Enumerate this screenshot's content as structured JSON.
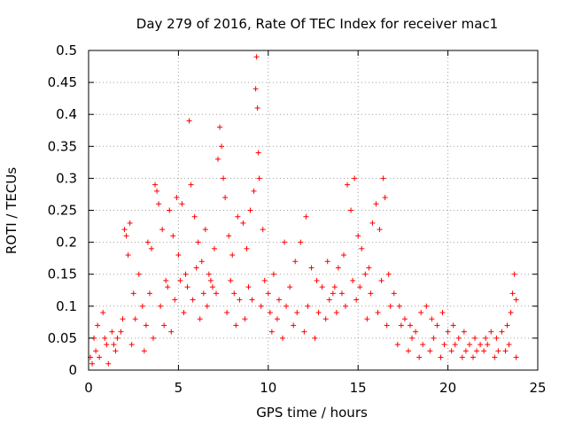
{
  "chart_data": {
    "type": "scatter",
    "title": "Day 279 of 2016, Rate Of TEC Index for receiver mac1",
    "xlabel": "GPS time / hours",
    "ylabel": "ROTI / TECUs",
    "xlim": [
      0,
      25
    ],
    "ylim": [
      0,
      0.5
    ],
    "x_ticks": [
      0,
      5,
      10,
      15,
      20,
      25
    ],
    "x_tick_labels": [
      "0",
      "5",
      "10",
      "15",
      "20",
      "25"
    ],
    "y_ticks": [
      0,
      0.05,
      0.1,
      0.15,
      0.2,
      0.25,
      0.3,
      0.35,
      0.4,
      0.45,
      0.5
    ],
    "y_tick_labels": [
      "0",
      "0.05",
      "0.1",
      "0.15",
      "0.2",
      "0.25",
      "0.3",
      "0.35",
      "0.4",
      "0.45",
      "0.5"
    ],
    "grid": true,
    "marker": "+",
    "color": "#ff0000",
    "series": [
      {
        "name": "ROTI",
        "points": [
          [
            0.1,
            0.02
          ],
          [
            0.3,
            0.05
          ],
          [
            0.5,
            0.07
          ],
          [
            0.8,
            0.09
          ],
          [
            1.0,
            0.04
          ],
          [
            1.3,
            0.06
          ],
          [
            1.6,
            0.05
          ],
          [
            1.9,
            0.08
          ],
          [
            2.0,
            0.22
          ],
          [
            2.1,
            0.21
          ],
          [
            2.2,
            0.18
          ],
          [
            2.3,
            0.23
          ],
          [
            2.5,
            0.12
          ],
          [
            2.8,
            0.15
          ],
          [
            3.0,
            0.1
          ],
          [
            3.3,
            0.2
          ],
          [
            3.5,
            0.19
          ],
          [
            3.7,
            0.29
          ],
          [
            3.8,
            0.28
          ],
          [
            3.9,
            0.26
          ],
          [
            4.1,
            0.22
          ],
          [
            4.3,
            0.14
          ],
          [
            4.5,
            0.25
          ],
          [
            4.7,
            0.21
          ],
          [
            4.9,
            0.27
          ],
          [
            5.0,
            0.18
          ],
          [
            5.2,
            0.26
          ],
          [
            5.4,
            0.15
          ],
          [
            5.6,
            0.39
          ],
          [
            5.7,
            0.29
          ],
          [
            5.9,
            0.24
          ],
          [
            6.1,
            0.2
          ],
          [
            6.3,
            0.17
          ],
          [
            6.5,
            0.22
          ],
          [
            6.8,
            0.14
          ],
          [
            7.0,
            0.19
          ],
          [
            7.2,
            0.33
          ],
          [
            7.3,
            0.38
          ],
          [
            7.4,
            0.35
          ],
          [
            7.5,
            0.3
          ],
          [
            7.6,
            0.27
          ],
          [
            7.8,
            0.21
          ],
          [
            8.0,
            0.18
          ],
          [
            8.3,
            0.24
          ],
          [
            8.6,
            0.23
          ],
          [
            8.8,
            0.19
          ],
          [
            9.0,
            0.25
          ],
          [
            9.2,
            0.28
          ],
          [
            9.3,
            0.44
          ],
          [
            9.35,
            0.49
          ],
          [
            9.4,
            0.41
          ],
          [
            9.45,
            0.34
          ],
          [
            9.5,
            0.3
          ],
          [
            9.7,
            0.22
          ],
          [
            10.0,
            0.12
          ],
          [
            10.3,
            0.15
          ],
          [
            10.6,
            0.11
          ],
          [
            10.9,
            0.2
          ],
          [
            11.2,
            0.13
          ],
          [
            11.5,
            0.17
          ],
          [
            11.8,
            0.2
          ],
          [
            12.1,
            0.24
          ],
          [
            12.4,
            0.16
          ],
          [
            12.7,
            0.14
          ],
          [
            13.0,
            0.13
          ],
          [
            13.3,
            0.17
          ],
          [
            13.6,
            0.12
          ],
          [
            13.9,
            0.16
          ],
          [
            14.2,
            0.18
          ],
          [
            14.4,
            0.29
          ],
          [
            14.6,
            0.25
          ],
          [
            14.8,
            0.3
          ],
          [
            15.0,
            0.21
          ],
          [
            15.2,
            0.19
          ],
          [
            15.4,
            0.15
          ],
          [
            15.6,
            0.16
          ],
          [
            15.8,
            0.23
          ],
          [
            16.0,
            0.26
          ],
          [
            16.2,
            0.22
          ],
          [
            16.4,
            0.3
          ],
          [
            16.5,
            0.27
          ],
          [
            16.7,
            0.15
          ],
          [
            17.0,
            0.12
          ],
          [
            17.3,
            0.1
          ],
          [
            17.6,
            0.08
          ],
          [
            17.9,
            0.07
          ],
          [
            18.2,
            0.06
          ],
          [
            18.5,
            0.09
          ],
          [
            18.8,
            0.1
          ],
          [
            19.1,
            0.08
          ],
          [
            19.4,
            0.07
          ],
          [
            19.7,
            0.09
          ],
          [
            20.0,
            0.06
          ],
          [
            20.3,
            0.07
          ],
          [
            20.6,
            0.05
          ],
          [
            20.9,
            0.06
          ],
          [
            21.2,
            0.04
          ],
          [
            21.5,
            0.05
          ],
          [
            21.8,
            0.04
          ],
          [
            22.1,
            0.05
          ],
          [
            22.4,
            0.06
          ],
          [
            22.7,
            0.05
          ],
          [
            23.0,
            0.06
          ],
          [
            23.3,
            0.07
          ],
          [
            23.5,
            0.09
          ],
          [
            23.6,
            0.12
          ],
          [
            23.7,
            0.15
          ],
          [
            23.8,
            0.11
          ],
          [
            0.2,
            0.01
          ],
          [
            0.6,
            0.02
          ],
          [
            1.1,
            0.01
          ],
          [
            1.5,
            0.03
          ],
          [
            2.4,
            0.04
          ],
          [
            3.1,
            0.03
          ],
          [
            3.6,
            0.05
          ],
          [
            4.2,
            0.07
          ],
          [
            4.6,
            0.06
          ],
          [
            5.3,
            0.09
          ],
          [
            5.8,
            0.11
          ],
          [
            6.2,
            0.08
          ],
          [
            6.6,
            0.1
          ],
          [
            7.1,
            0.12
          ],
          [
            7.7,
            0.09
          ],
          [
            8.2,
            0.07
          ],
          [
            8.7,
            0.08
          ],
          [
            9.1,
            0.11
          ],
          [
            9.6,
            0.1
          ],
          [
            10.2,
            0.06
          ],
          [
            10.8,
            0.05
          ],
          [
            11.4,
            0.07
          ],
          [
            12.0,
            0.06
          ],
          [
            12.6,
            0.05
          ],
          [
            13.2,
            0.08
          ],
          [
            13.8,
            0.09
          ],
          [
            14.3,
            0.1
          ],
          [
            14.9,
            0.11
          ],
          [
            15.5,
            0.08
          ],
          [
            16.1,
            0.09
          ],
          [
            16.6,
            0.07
          ],
          [
            17.2,
            0.04
          ],
          [
            17.8,
            0.03
          ],
          [
            18.4,
            0.02
          ],
          [
            19.0,
            0.03
          ],
          [
            19.6,
            0.02
          ],
          [
            20.2,
            0.03
          ],
          [
            20.8,
            0.02
          ],
          [
            21.4,
            0.02
          ],
          [
            22.0,
            0.03
          ],
          [
            22.6,
            0.02
          ],
          [
            23.2,
            0.03
          ],
          [
            23.8,
            0.02
          ],
          [
            0.4,
            0.03
          ],
          [
            0.9,
            0.05
          ],
          [
            1.4,
            0.04
          ],
          [
            1.8,
            0.06
          ],
          [
            2.6,
            0.08
          ],
          [
            3.2,
            0.07
          ],
          [
            3.4,
            0.12
          ],
          [
            4.0,
            0.1
          ],
          [
            4.4,
            0.13
          ],
          [
            4.8,
            0.11
          ],
          [
            5.1,
            0.14
          ],
          [
            5.5,
            0.13
          ],
          [
            6.0,
            0.16
          ],
          [
            6.4,
            0.12
          ],
          [
            6.7,
            0.15
          ],
          [
            6.9,
            0.13
          ],
          [
            7.9,
            0.14
          ],
          [
            8.1,
            0.12
          ],
          [
            8.4,
            0.11
          ],
          [
            8.9,
            0.13
          ],
          [
            9.8,
            0.14
          ],
          [
            10.1,
            0.09
          ],
          [
            10.5,
            0.08
          ],
          [
            11.0,
            0.1
          ],
          [
            11.6,
            0.09
          ],
          [
            12.2,
            0.1
          ],
          [
            12.8,
            0.09
          ],
          [
            13.4,
            0.11
          ],
          [
            13.7,
            0.13
          ],
          [
            14.1,
            0.12
          ],
          [
            14.7,
            0.14
          ],
          [
            15.1,
            0.13
          ],
          [
            15.7,
            0.12
          ],
          [
            16.3,
            0.14
          ],
          [
            16.8,
            0.1
          ],
          [
            17.4,
            0.07
          ],
          [
            18.0,
            0.05
          ],
          [
            18.6,
            0.04
          ],
          [
            19.2,
            0.05
          ],
          [
            19.8,
            0.04
          ],
          [
            20.4,
            0.04
          ],
          [
            21.0,
            0.03
          ],
          [
            21.6,
            0.03
          ],
          [
            22.2,
            0.04
          ],
          [
            22.8,
            0.03
          ],
          [
            23.4,
            0.04
          ]
        ]
      }
    ]
  }
}
